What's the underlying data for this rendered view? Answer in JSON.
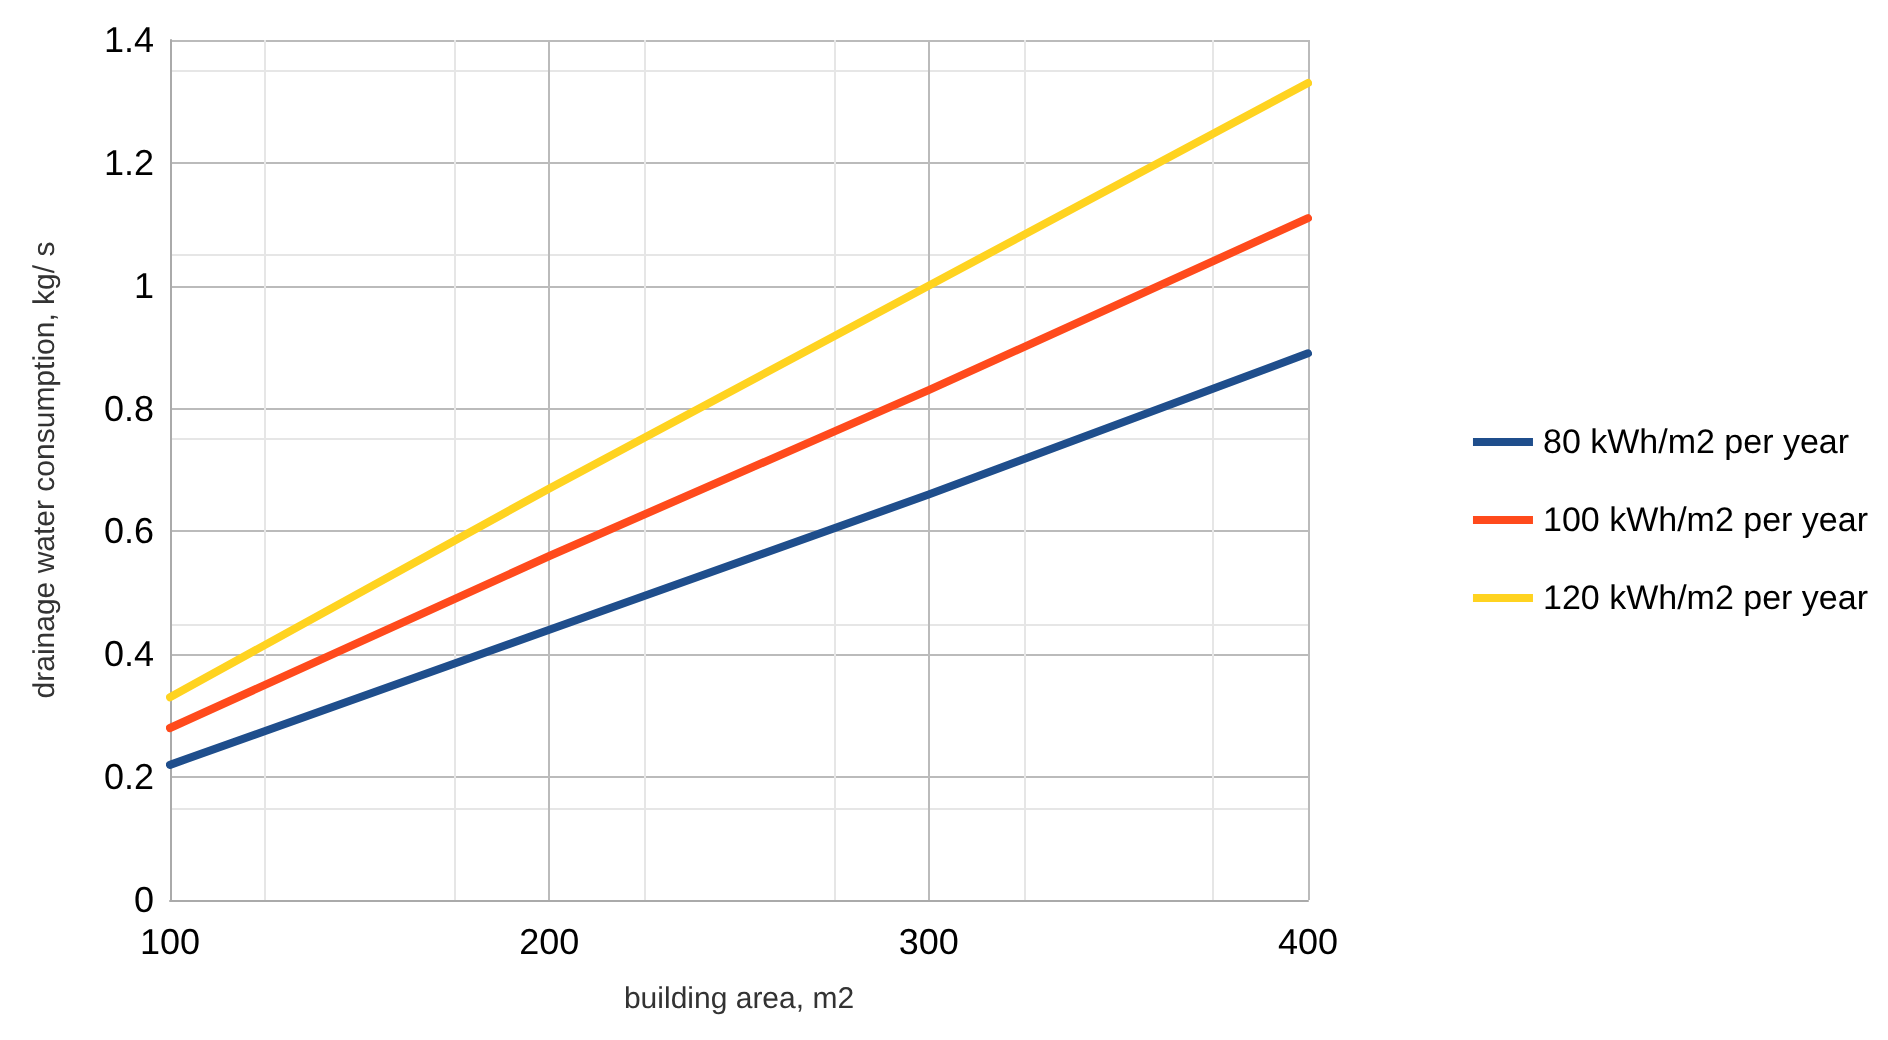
{
  "chart_data": {
    "type": "line",
    "xlabel": "building area, m2",
    "ylabel": "drainage water consumption, kg/ s",
    "x": [
      100,
      200,
      300,
      400
    ],
    "series": [
      {
        "name": "80 kWh/m2 per year",
        "color": "#1f4e8c",
        "values": [
          0.22,
          0.44,
          0.66,
          0.89
        ]
      },
      {
        "name": "100 kWh/m2 per year",
        "color": "#ff4a1c",
        "values": [
          0.28,
          0.56,
          0.83,
          1.11
        ]
      },
      {
        "name": "120 kWh/m2 per year",
        "color": "#ffd320",
        "values": [
          0.33,
          0.67,
          1.0,
          1.33
        ]
      }
    ],
    "xlim": [
      100,
      400
    ],
    "xticks": [
      100,
      200,
      300,
      400
    ],
    "ylim": [
      0,
      1.4
    ],
    "yticks": [
      0,
      0.2,
      0.4,
      0.6,
      0.8,
      1,
      1.2,
      1.4
    ],
    "grid": true,
    "legend": "right",
    "marker": "none",
    "line_style": "solid"
  }
}
